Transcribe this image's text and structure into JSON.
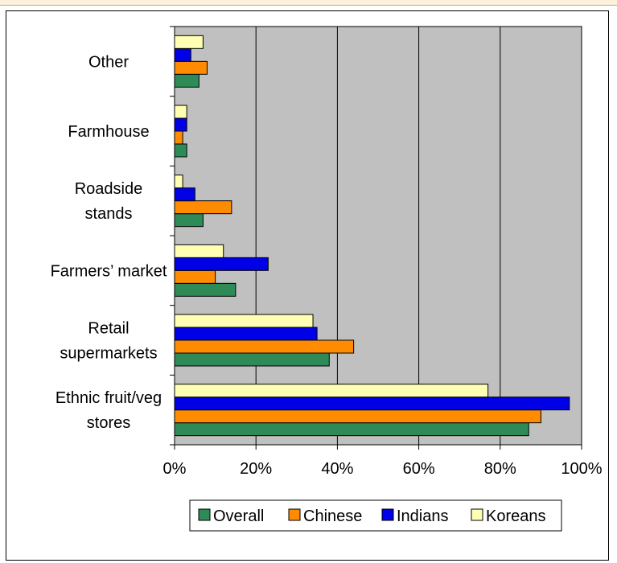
{
  "chart_data": {
    "type": "bar",
    "orientation": "horizontal",
    "categories": [
      "Ethnic fruit/veg stores",
      "Retail supermarkets",
      "Farmers’ market",
      "Roadside stands",
      "Farmhouse",
      "Other"
    ],
    "category_labels": [
      [
        "Ethnic fruit/veg",
        "stores"
      ],
      [
        "Retail",
        "supermarkets"
      ],
      [
        "Farmers’ market"
      ],
      [
        "Roadside",
        "stands"
      ],
      [
        "Farmhouse"
      ],
      [
        "Other"
      ]
    ],
    "series": [
      {
        "name": "Overall",
        "color": "#2e8b57",
        "values": [
          87,
          38,
          15,
          7,
          3,
          6
        ]
      },
      {
        "name": "Chinese",
        "color": "#ff8c00",
        "values": [
          90,
          44,
          10,
          14,
          2,
          8
        ]
      },
      {
        "name": "Indians",
        "color": "#0000e6",
        "values": [
          97,
          35,
          23,
          5,
          3,
          4
        ]
      },
      {
        "name": "Koreans",
        "color": "#ffffb3",
        "values": [
          77,
          34,
          12,
          2,
          3,
          7
        ]
      }
    ],
    "xticks": [
      "0%",
      "20%",
      "40%",
      "60%",
      "80%",
      "100%"
    ],
    "xlim": [
      0,
      100
    ],
    "grid": true,
    "plot_background": "#c0c0c0",
    "legend_position": "bottom"
  }
}
